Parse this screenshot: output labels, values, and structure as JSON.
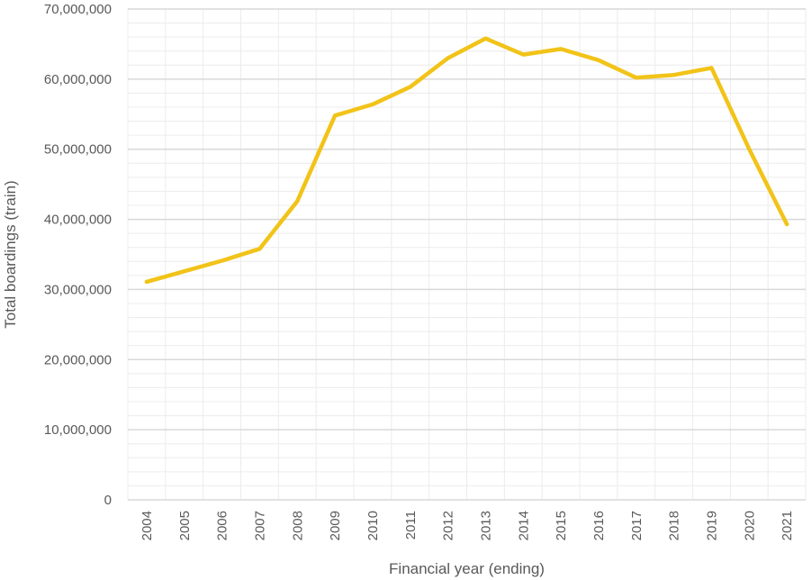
{
  "chart_data": {
    "type": "line",
    "xlabel": "Financial year (ending)",
    "ylabel": "Total boardings (train)",
    "ylim": [
      0,
      70000000
    ],
    "y_ticks": [
      {
        "value": 0,
        "label": "0"
      },
      {
        "value": 10000000,
        "label": "10,000,000"
      },
      {
        "value": 20000000,
        "label": "20,000,000"
      },
      {
        "value": 30000000,
        "label": "30,000,000"
      },
      {
        "value": 40000000,
        "label": "40,000,000"
      },
      {
        "value": 50000000,
        "label": "50,000,000"
      },
      {
        "value": 60000000,
        "label": "60,000,000"
      },
      {
        "value": 70000000,
        "label": "70,000,000"
      }
    ],
    "categories": [
      "2004",
      "2005",
      "2006",
      "2007",
      "2008",
      "2009",
      "2010",
      "2011",
      "2012",
      "2013",
      "2014",
      "2015",
      "2016",
      "2017",
      "2018",
      "2019",
      "2020",
      "2021"
    ],
    "series": [
      {
        "color": "#F2C318",
        "values": [
          31100000,
          32600000,
          34100000,
          35800000,
          42600000,
          54800000,
          56400000,
          58900000,
          63000000,
          65800000,
          63500000,
          64300000,
          62700000,
          60200000,
          60600000,
          61600000,
          50000000,
          39300000
        ]
      }
    ],
    "grid": {
      "major": true,
      "minor": true
    },
    "legend": "none"
  },
  "colors": {
    "line": "#F2C318",
    "major_grid": "#d9d9d9",
    "minor_grid": "#ececec",
    "text": "#595959"
  }
}
